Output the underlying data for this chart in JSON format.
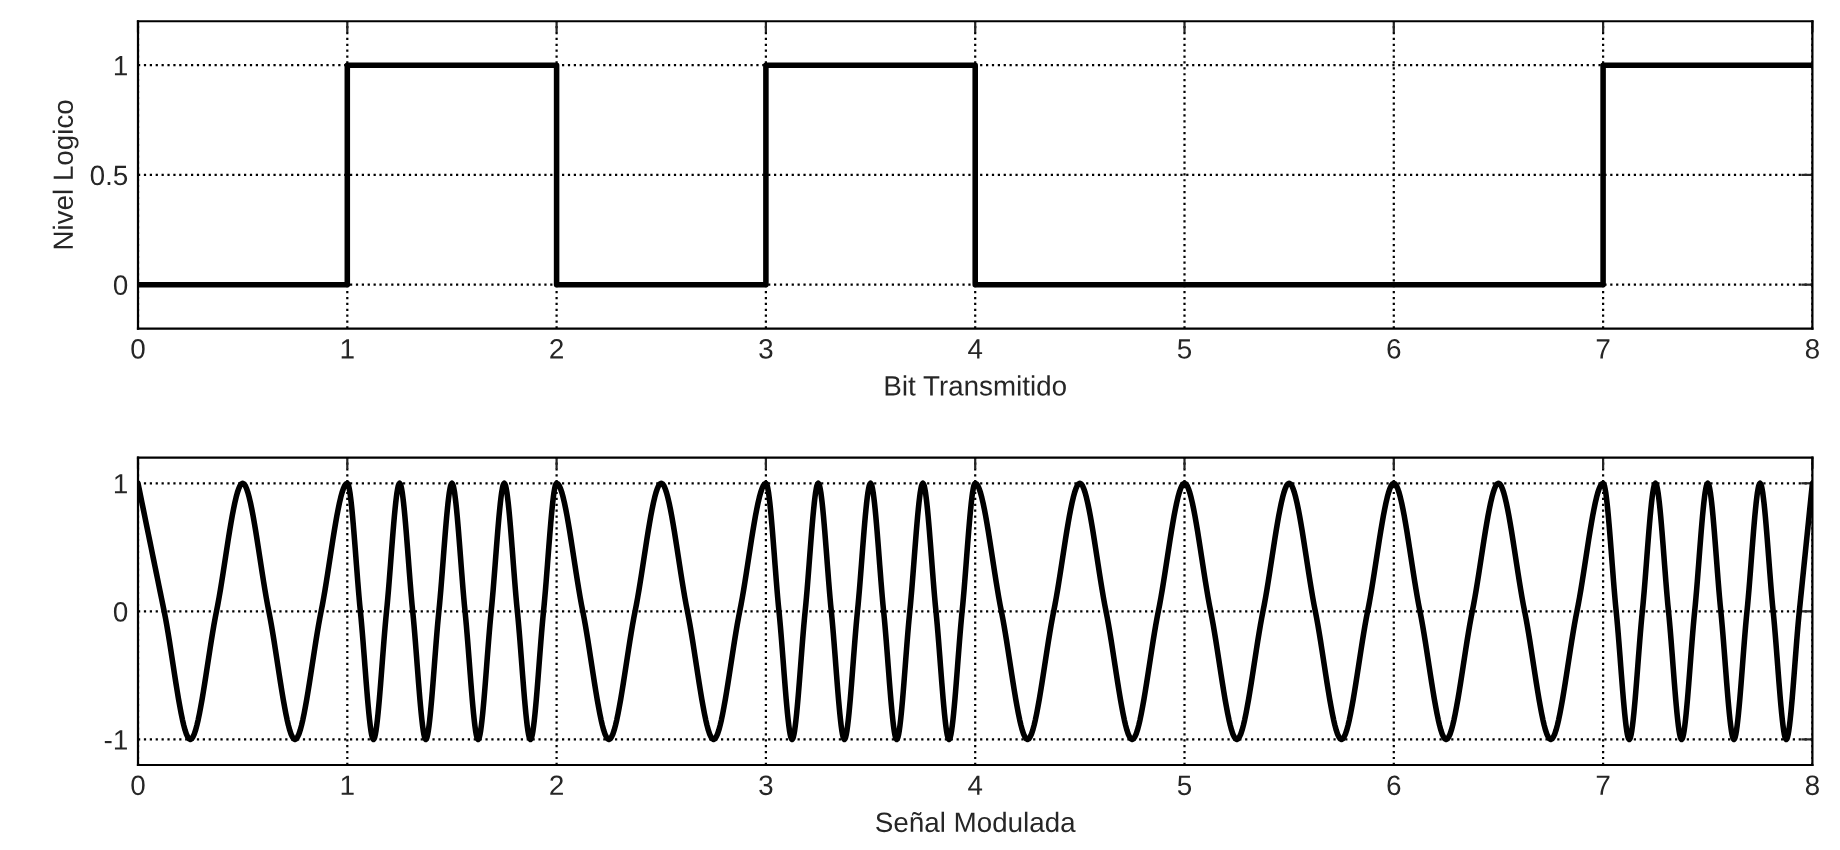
{
  "chart_data": [
    {
      "type": "step",
      "xlabel": "Bit Transmitido",
      "ylabel": "Nivel Logico",
      "color": "#000000",
      "line_style": "solid",
      "grid": true,
      "x": [
        0,
        1,
        2,
        3,
        4,
        5,
        6,
        7,
        8
      ],
      "values": [
        0,
        1,
        0,
        1,
        0,
        0,
        0,
        1,
        1
      ],
      "xlim": [
        0,
        8
      ],
      "ylim": [
        -0.2,
        1.2
      ],
      "xticks": [
        0,
        1,
        2,
        3,
        4,
        5,
        6,
        7,
        8
      ],
      "yticks": [
        0,
        0.5,
        1
      ]
    },
    {
      "type": "line",
      "xlabel": "Señal Modulada",
      "color": "#000000",
      "line_style": "solid",
      "grid": true,
      "x": [
        0,
        0.125,
        0.25,
        0.375,
        0.5,
        0.625,
        0.75,
        0.875,
        1,
        1.0625,
        1.125,
        1.1875,
        1.25,
        1.3125,
        1.375,
        1.4375,
        1.5,
        1.5625,
        1.625,
        1.6875,
        1.75,
        1.8125,
        1.875,
        1.9375,
        2,
        2.125,
        2.25,
        2.375,
        2.5,
        2.625,
        2.75,
        2.875,
        3,
        3.0625,
        3.125,
        3.1875,
        3.25,
        3.3125,
        3.375,
        3.4375,
        3.5,
        3.5625,
        3.625,
        3.6875,
        3.75,
        3.8125,
        3.875,
        3.9375,
        4,
        4.125,
        4.25,
        4.375,
        4.5,
        4.625,
        4.75,
        4.875,
        5,
        5.125,
        5.25,
        5.375,
        5.5,
        5.625,
        5.75,
        5.875,
        6,
        6.125,
        6.25,
        6.375,
        6.5,
        6.625,
        6.75,
        6.875,
        7,
        7.0625,
        7.125,
        7.1875,
        7.25,
        7.3125,
        7.375,
        7.4375,
        7.5,
        7.5625,
        7.625,
        7.6875,
        7.75,
        7.8125,
        7.875,
        7.9375,
        8
      ],
      "values": [
        1,
        0,
        -1,
        0,
        1,
        0,
        -1,
        0,
        1,
        0,
        -1,
        0,
        1,
        0,
        -1,
        0,
        1,
        0,
        -1,
        0,
        1,
        0,
        -1,
        0,
        1,
        0,
        -1,
        0,
        1,
        0,
        -1,
        0,
        1,
        0,
        -1,
        0,
        1,
        0,
        -1,
        0,
        1,
        0,
        -1,
        0,
        1,
        0,
        -1,
        0,
        1,
        0,
        -1,
        0,
        1,
        0,
        -1,
        0,
        1,
        0,
        -1,
        0,
        1,
        0,
        -1,
        0,
        1,
        0,
        -1,
        0,
        1,
        0,
        -1,
        0,
        1,
        0,
        -1,
        0,
        1,
        0,
        -1,
        0,
        1,
        0,
        -1,
        0,
        1,
        0,
        -1,
        0,
        1
      ],
      "xlim": [
        0,
        8
      ],
      "ylim": [
        -1.2,
        1.2
      ],
      "xticks": [
        0,
        1,
        2,
        3,
        4,
        5,
        6,
        7,
        8
      ],
      "yticks": [
        -1,
        0,
        1
      ]
    }
  ]
}
